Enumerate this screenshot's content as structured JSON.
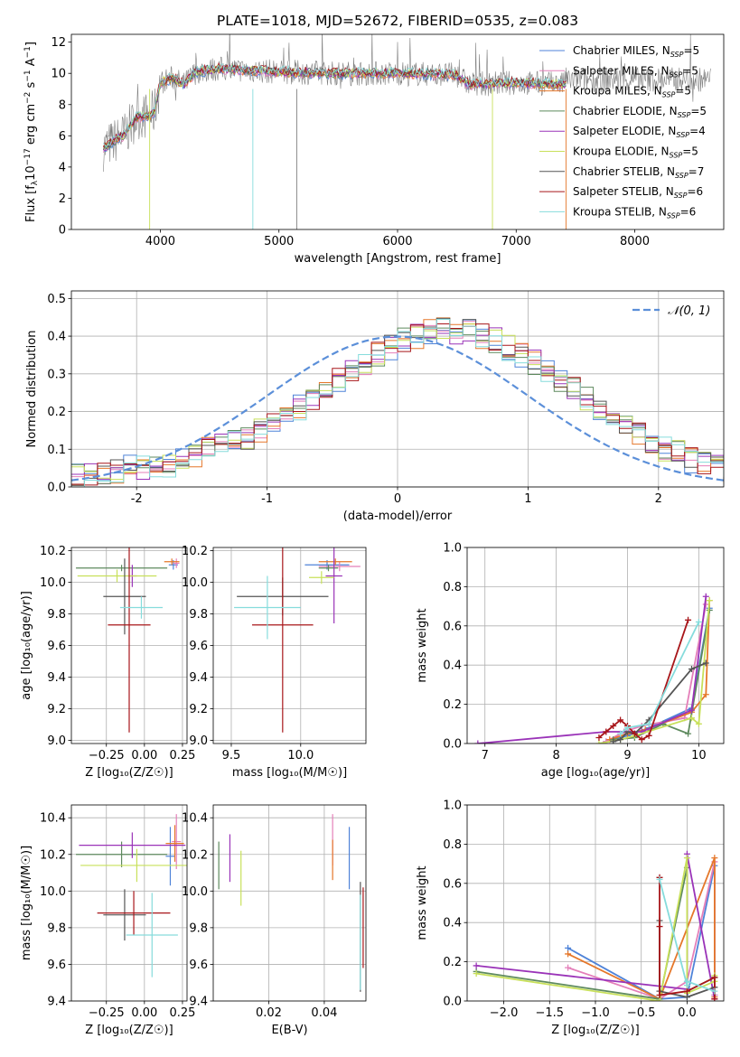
{
  "colors": {
    "Chabrier MILES": "#4f83d8",
    "Salpeter MILES": "#e47fb9",
    "Kroupa MILES": "#e5772a",
    "Chabrier ELODIE": "#5e8a5e",
    "Salpeter ELODIE": "#9a33b8",
    "Kroupa ELODIE": "#c8e05a",
    "Chabrier STELIB": "#555555",
    "Salpeter STELIB": "#a8161a",
    "Kroupa STELIB": "#86dcdc",
    "normal": "#5b8fd9",
    "spectrum": "#808080"
  },
  "chart_data": [
    {
      "type": "line",
      "title": "PLATE=1018, MJD=52672, FIBERID=0535, z=0.083",
      "xlabel": "wavelength [Angstrom, rest frame]",
      "ylabel_parts": {
        "pre": "Flux [f",
        "sub1": "λ",
        "mid": "10",
        "sup1": "−17",
        "post": " erg cm",
        "sup2": "−2",
        "post2": " s",
        "sup3": "−1",
        "post3": " A",
        "sup4": "−1",
        "end": "]"
      },
      "xlim": [
        3250,
        8750
      ],
      "ylim": [
        0,
        12.5
      ],
      "xticks": [
        4000,
        5000,
        6000,
        7000,
        8000
      ],
      "yticks": [
        0,
        2,
        4,
        6,
        8,
        10,
        12
      ],
      "spectrum_shape": {
        "x": [
          3520,
          3600,
          3700,
          3800,
          3900,
          3950,
          4000,
          4100,
          4200,
          4300,
          4500,
          4700,
          5000,
          5500,
          6000,
          6500,
          6600,
          7000,
          7400
        ],
        "y": [
          5.2,
          5.6,
          6.1,
          7.2,
          7.3,
          7.5,
          9.4,
          9.7,
          9.3,
          10.1,
          10.3,
          10.2,
          10.1,
          10.0,
          10.0,
          9.9,
          9.3,
          9.4,
          9.3
        ]
      },
      "legend": [
        {
          "pre": "Chabrier MILES, N",
          "sub": "SSP",
          "post": "=5",
          "key": "Chabrier MILES"
        },
        {
          "pre": "Salpeter MILES, N",
          "sub": "SSP",
          "post": "=5",
          "key": "Salpeter MILES"
        },
        {
          "pre": "Kroupa MILES, N",
          "sub": "SSP",
          "post": "=5",
          "key": "Kroupa MILES"
        },
        {
          "pre": "Chabrier ELODIE, N",
          "sub": "SSP",
          "post": "=5",
          "key": "Chabrier ELODIE"
        },
        {
          "pre": "Salpeter ELODIE, N",
          "sub": "SSP",
          "post": "=4",
          "key": "Salpeter ELODIE"
        },
        {
          "pre": "Kroupa ELODIE, N",
          "sub": "SSP",
          "post": "=5",
          "key": "Kroupa ELODIE"
        },
        {
          "pre": "Chabrier STELIB, N",
          "sub": "SSP",
          "post": "=7",
          "key": "Chabrier STELIB"
        },
        {
          "pre": "Salpeter STELIB, N",
          "sub": "SSP",
          "post": "=6",
          "key": "Salpeter STELIB"
        },
        {
          "pre": "Kroupa STELIB, N",
          "sub": "SSP",
          "post": "=6",
          "key": "Kroupa STELIB"
        }
      ]
    },
    {
      "type": "histogram",
      "xlabel": "(data-model)/error",
      "ylabel": "Normed distribution",
      "xlim": [
        -2.5,
        2.5
      ],
      "ylim": [
        0,
        0.52
      ],
      "xticks": [
        -2,
        -1,
        0,
        1,
        2
      ],
      "yticks": [
        0.0,
        0.1,
        0.2,
        0.3,
        0.4,
        0.5
      ],
      "bin_width": 0.1,
      "bin_start": -2.5,
      "normal_label": "𝒩(0, 1)",
      "series_hist": [
        0.03,
        0.03,
        0.03,
        0.04,
        0.05,
        0.05,
        0.05,
        0.06,
        0.08,
        0.08,
        0.1,
        0.11,
        0.12,
        0.13,
        0.15,
        0.17,
        0.19,
        0.21,
        0.23,
        0.26,
        0.28,
        0.31,
        0.33,
        0.35,
        0.37,
        0.39,
        0.4,
        0.41,
        0.42,
        0.41,
        0.41,
        0.4,
        0.39,
        0.37,
        0.35,
        0.33,
        0.31,
        0.28,
        0.26,
        0.23,
        0.21,
        0.18,
        0.16,
        0.14,
        0.12,
        0.1,
        0.09,
        0.07,
        0.06,
        0.05,
        0.04
      ]
    },
    {
      "type": "errorbar",
      "xlabel": "Z [log₁₀(Z/Z☉)]",
      "ylabel": "age  [log₁₀(age/yr)]",
      "xlim": [
        -0.48,
        0.28
      ],
      "ylim": [
        8.98,
        10.22
      ],
      "xticks": [
        -0.25,
        0.0,
        0.25
      ],
      "xticklabels": [
        "−0.25",
        "0.00",
        "0.25"
      ],
      "yticks": [
        9.0,
        9.2,
        9.4,
        9.6,
        9.8,
        10.0,
        10.2
      ],
      "points": [
        {
          "key": "Chabrier MILES",
          "x": 0.19,
          "y": 10.11,
          "xerr": 0.03,
          "yerr": 0.03
        },
        {
          "key": "Salpeter MILES",
          "x": 0.21,
          "y": 10.12,
          "xerr": 0.02,
          "yerr": 0.03
        },
        {
          "key": "Kroupa MILES",
          "x": 0.18,
          "y": 10.13,
          "xerr": 0.05,
          "yerr": 0.02
        },
        {
          "key": "Chabrier ELODIE",
          "x": -0.15,
          "y": 10.09,
          "xerr": 0.3,
          "yerr": 0.02
        },
        {
          "key": "Salpeter ELODIE",
          "x": -0.08,
          "y": 10.04,
          "xerr": 0.03,
          "yerr": 0.07
        },
        {
          "key": "Kroupa ELODIE",
          "x": -0.18,
          "y": 10.04,
          "xerr": 0.26,
          "yerr": 0.04
        },
        {
          "key": "Chabrier STELIB",
          "x": -0.13,
          "y": 9.91,
          "xerr": 0.14,
          "yerr": 0.24
        },
        {
          "key": "Salpeter STELIB",
          "x": -0.1,
          "y": 9.73,
          "xerr": 0.14,
          "yerr": 0.68
        },
        {
          "key": "Kroupa STELIB",
          "x": -0.02,
          "y": 9.84,
          "xerr": 0.14,
          "yerr": 0.07
        }
      ]
    },
    {
      "type": "errorbar",
      "xlabel": "mass [log₁₀(M/M☉)]",
      "ylabel": "",
      "xlim": [
        9.37,
        10.47
      ],
      "ylim": [
        8.98,
        10.22
      ],
      "xticks": [
        9.5,
        10.0
      ],
      "xticklabels": [
        "9.5",
        "10.0"
      ],
      "yticks": [
        9.0,
        9.2,
        9.4,
        9.6,
        9.8,
        10.0,
        10.2
      ],
      "points": [
        {
          "key": "Chabrier MILES",
          "x": 10.19,
          "y": 10.11,
          "xerr": 0.16,
          "yerr": 0.03
        },
        {
          "key": "Salpeter MILES",
          "x": 10.28,
          "y": 10.1,
          "xerr": 0.15,
          "yerr": 0.03
        },
        {
          "key": "Kroupa MILES",
          "x": 10.25,
          "y": 10.13,
          "xerr": 0.12,
          "yerr": 0.02
        },
        {
          "key": "Chabrier ELODIE",
          "x": 10.2,
          "y": 10.09,
          "xerr": 0.07,
          "yerr": 0.02
        },
        {
          "key": "Salpeter ELODIE",
          "x": 10.24,
          "y": 10.04,
          "xerr": 0.06,
          "yerr": 0.3
        },
        {
          "key": "Kroupa ELODIE",
          "x": 10.15,
          "y": 10.03,
          "xerr": 0.09,
          "yerr": 0.04
        },
        {
          "key": "Chabrier STELIB",
          "x": 9.87,
          "y": 9.91,
          "xerr": 0.33,
          "yerr": 0.12
        },
        {
          "key": "Salpeter STELIB",
          "x": 9.87,
          "y": 9.73,
          "xerr": 0.22,
          "yerr": 0.68
        },
        {
          "key": "Kroupa STELIB",
          "x": 9.76,
          "y": 9.84,
          "xerr": 0.24,
          "yerr": 0.2
        }
      ]
    },
    {
      "type": "line",
      "xlabel": "age  [log₁₀(age/yr)]",
      "ylabel": "mass weight",
      "xlim": [
        6.75,
        10.35
      ],
      "ylim": [
        0.0,
        1.0
      ],
      "xticks": [
        7,
        8,
        9,
        10
      ],
      "yticks": [
        0.0,
        0.2,
        0.4,
        0.6,
        0.8,
        1.0
      ],
      "series": [
        {
          "key": "Chabrier MILES",
          "x": [
            8.7,
            9.0,
            9.3,
            9.9,
            10.15
          ],
          "y": [
            0.01,
            0.04,
            0.08,
            0.18,
            0.69
          ]
        },
        {
          "key": "Salpeter MILES",
          "x": [
            8.7,
            8.95,
            9.2,
            9.8,
            10.1
          ],
          "y": [
            0.01,
            0.06,
            0.09,
            0.13,
            0.71
          ]
        },
        {
          "key": "Kroupa MILES",
          "x": [
            8.75,
            9.0,
            9.25,
            9.9,
            10.1,
            10.15
          ],
          "y": [
            0.02,
            0.05,
            0.07,
            0.16,
            0.25,
            0.73
          ]
        },
        {
          "key": "Chabrier ELODIE",
          "x": [
            8.8,
            9.1,
            9.5,
            9.85,
            10.15
          ],
          "y": [
            0.02,
            0.03,
            0.1,
            0.05,
            0.68
          ]
        },
        {
          "key": "Salpeter ELODIE",
          "x": [
            6.9,
            8.7,
            9.2,
            9.9,
            10.1
          ],
          "y": [
            0.0,
            0.06,
            0.06,
            0.17,
            0.75
          ]
        },
        {
          "key": "Kroupa ELODIE",
          "x": [
            8.6,
            8.9,
            9.1,
            9.9,
            10.0,
            10.15
          ],
          "y": [
            0.0,
            0.02,
            0.04,
            0.13,
            0.1,
            0.73
          ]
        },
        {
          "key": "Chabrier STELIB",
          "x": [
            8.8,
            8.9,
            9.0,
            9.1,
            9.3,
            9.9,
            10.1
          ],
          "y": [
            0.01,
            0.02,
            0.06,
            0.05,
            0.12,
            0.38,
            0.41
          ]
        },
        {
          "key": "Salpeter STELIB",
          "x": [
            8.6,
            8.7,
            8.8,
            8.9,
            9.0,
            9.1,
            9.2,
            9.3,
            9.85
          ],
          "y": [
            0.03,
            0.06,
            0.09,
            0.12,
            0.09,
            0.05,
            0.02,
            0.04,
            0.63
          ]
        },
        {
          "key": "Kroupa STELIB",
          "x": [
            8.9,
            9.0,
            9.3,
            10.0
          ],
          "y": [
            0.05,
            0.08,
            0.1,
            0.62
          ]
        }
      ]
    },
    {
      "type": "errorbar",
      "xlabel": "Z [log₁₀(Z/Z☉)]",
      "ylabel": "mass [log₁₀(M/M☉)]",
      "xlim": [
        -0.48,
        0.28
      ],
      "ylim": [
        9.4,
        10.47
      ],
      "xticks": [
        -0.25,
        0.0,
        0.25
      ],
      "xticklabels": [
        "−0.25",
        "0.00",
        "0.25"
      ],
      "yticks": [
        9.4,
        9.6,
        9.8,
        10.0,
        10.2,
        10.4
      ],
      "points": [
        {
          "key": "Chabrier MILES",
          "x": 0.17,
          "y": 10.19,
          "xerr": 0.03,
          "yerr": 0.16
        },
        {
          "key": "Salpeter MILES",
          "x": 0.21,
          "y": 10.27,
          "xerr": 0.03,
          "yerr": 0.15
        },
        {
          "key": "Kroupa MILES",
          "x": 0.2,
          "y": 10.26,
          "xerr": 0.06,
          "yerr": 0.1
        },
        {
          "key": "Chabrier ELODIE",
          "x": -0.15,
          "y": 10.2,
          "xerr": 0.3,
          "yerr": 0.07
        },
        {
          "key": "Salpeter ELODIE",
          "x": -0.08,
          "y": 10.25,
          "xerr": 0.35,
          "yerr": 0.07
        },
        {
          "key": "Kroupa ELODIE",
          "x": -0.05,
          "y": 10.14,
          "xerr": 0.37,
          "yerr": 0.09
        },
        {
          "key": "Chabrier STELIB",
          "x": -0.13,
          "y": 9.87,
          "xerr": 0.14,
          "yerr": 0.14
        },
        {
          "key": "Salpeter STELIB",
          "x": -0.07,
          "y": 9.88,
          "xerr": 0.24,
          "yerr": 0.12
        },
        {
          "key": "Kroupa STELIB",
          "x": 0.05,
          "y": 9.76,
          "xerr": 0.17,
          "yerr": 0.23
        }
      ]
    },
    {
      "type": "errorbar",
      "xlabel": "E(B-V)",
      "ylabel": "",
      "xlim": [
        0.0,
        0.055
      ],
      "ylim": [
        9.4,
        10.47
      ],
      "xticks": [
        0.02,
        0.04
      ],
      "xticklabels": [
        "0.02",
        "0.04"
      ],
      "yticks": [
        9.4,
        9.6,
        9.8,
        10.0,
        10.2,
        10.4
      ],
      "points": [
        {
          "key": "Chabrier MILES",
          "x": 0.049,
          "y": 10.18,
          "xerr": 0.0,
          "yerr": 0.17
        },
        {
          "key": "Salpeter MILES",
          "x": 0.043,
          "y": 10.28,
          "xerr": 0.0,
          "yerr": 0.14
        },
        {
          "key": "Kroupa MILES",
          "x": 0.043,
          "y": 10.17,
          "xerr": 0.0,
          "yerr": 0.11
        },
        {
          "key": "Chabrier ELODIE",
          "x": 0.002,
          "y": 10.14,
          "xerr": 0.0,
          "yerr": 0.13
        },
        {
          "key": "Salpeter ELODIE",
          "x": 0.006,
          "y": 10.18,
          "xerr": 0.0,
          "yerr": 0.13
        },
        {
          "key": "Kroupa ELODIE",
          "x": 0.01,
          "y": 10.07,
          "xerr": 0.0,
          "yerr": 0.15
        },
        {
          "key": "Chabrier STELIB",
          "x": 0.053,
          "y": 9.75,
          "xerr": 0.0,
          "yerr": 0.3
        },
        {
          "key": "Salpeter STELIB",
          "x": 0.054,
          "y": 9.8,
          "xerr": 0.0,
          "yerr": 0.22
        },
        {
          "key": "Kroupa STELIB",
          "x": 0.053,
          "y": 9.72,
          "xerr": 0.0,
          "yerr": 0.26
        }
      ]
    },
    {
      "type": "line",
      "xlabel": "Z [log₁₀(Z/Z☉)]",
      "ylabel": "mass weight",
      "xlim": [
        -2.4,
        0.4
      ],
      "ylim": [
        0.0,
        1.0
      ],
      "xticks": [
        -2.0,
        -1.5,
        -1.0,
        -0.5,
        0.0
      ],
      "xticklabels": [
        "−2.0",
        "−1.5",
        "−1.0",
        "−0.5",
        "0.0"
      ],
      "yticks": [
        0.0,
        0.2,
        0.4,
        0.6,
        0.8,
        1.0
      ],
      "series": [
        {
          "key": "Chabrier MILES",
          "x": [
            -1.3,
            -0.3,
            0.0,
            0.3,
            0.3
          ],
          "y": [
            0.27,
            0.01,
            0.02,
            0.69,
            0.03
          ]
        },
        {
          "key": "Salpeter MILES",
          "x": [
            -1.3,
            -0.3,
            0.0,
            0.3,
            0.3
          ],
          "y": [
            0.17,
            0.01,
            0.1,
            0.71,
            0.03
          ]
        },
        {
          "key": "Kroupa MILES",
          "x": [
            -1.3,
            -0.3,
            0.3,
            0.3
          ],
          "y": [
            0.24,
            0.01,
            0.73,
            0.02
          ]
        },
        {
          "key": "Chabrier ELODIE",
          "x": [
            -2.3,
            -0.3,
            0.0,
            0.0,
            0.3
          ],
          "y": [
            0.15,
            0.01,
            0.68,
            0.05,
            0.12
          ]
        },
        {
          "key": "Salpeter ELODIE",
          "x": [
            -2.3,
            0.0,
            0.0,
            0.3
          ],
          "y": [
            0.18,
            0.06,
            0.75,
            0.01
          ]
        },
        {
          "key": "Kroupa ELODIE",
          "x": [
            -2.3,
            -0.3,
            0.0,
            0.0,
            0.3,
            0.3
          ],
          "y": [
            0.14,
            0.0,
            0.73,
            0.04,
            0.1,
            0.13
          ]
        },
        {
          "key": "Chabrier STELIB",
          "x": [
            -0.3,
            -0.3,
            0.0,
            0.3
          ],
          "y": [
            0.41,
            0.05,
            0.02,
            0.07
          ]
        },
        {
          "key": "Salpeter STELIB",
          "x": [
            -0.3,
            -0.3,
            -0.3,
            0.0,
            0.3,
            0.3
          ],
          "y": [
            0.63,
            0.38,
            0.03,
            0.05,
            0.12,
            0.01
          ]
        },
        {
          "key": "Kroupa STELIB",
          "x": [
            -0.3,
            0.0,
            0.0,
            0.3
          ],
          "y": [
            0.62,
            0.08,
            0.1,
            0.05
          ]
        }
      ]
    }
  ]
}
